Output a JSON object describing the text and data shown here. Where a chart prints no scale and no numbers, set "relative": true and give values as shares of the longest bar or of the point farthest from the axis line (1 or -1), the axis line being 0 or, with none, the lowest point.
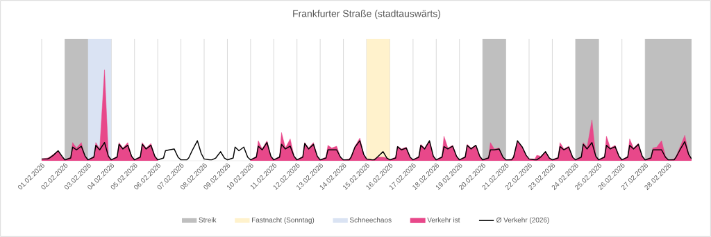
{
  "chart_data": {
    "type": "area",
    "title": "Frankfurter Straße (stadtauswärts)",
    "relative": true,
    "grid": true,
    "legend": "bottom",
    "xlim": [
      "2026-02-01",
      "2026-03-01"
    ],
    "xticks": [
      {
        "value": "2026-02-01",
        "label": "01.02.2026"
      },
      {
        "value": "2026-02-02",
        "label": "02.02.2026"
      },
      {
        "value": "2026-02-03",
        "label": "03.02.2026"
      },
      {
        "value": "2026-02-04",
        "label": "04.02.2026"
      },
      {
        "value": "2026-02-05",
        "label": "05.02.2026"
      },
      {
        "value": "2026-02-06",
        "label": "06.02.2026"
      },
      {
        "value": "2026-02-07",
        "label": "07.02.2026"
      },
      {
        "value": "2026-02-08",
        "label": "08.02.2026"
      },
      {
        "value": "2026-02-09",
        "label": "09.02.2026"
      },
      {
        "value": "2026-02-10",
        "label": "10.02.2026"
      },
      {
        "value": "2026-02-11",
        "label": "11.02.2026"
      },
      {
        "value": "2026-02-12",
        "label": "12.02.2026"
      },
      {
        "value": "2026-02-13",
        "label": "13.02.2026"
      },
      {
        "value": "2026-02-14",
        "label": "14.02.2026"
      },
      {
        "value": "2026-02-15",
        "label": "15.02.2026"
      },
      {
        "value": "2026-02-16",
        "label": "16.02.2026"
      },
      {
        "value": "2026-02-17",
        "label": "17.02.2026"
      },
      {
        "value": "2026-02-18",
        "label": "18.02.2026"
      },
      {
        "value": "2026-02-19",
        "label": "19.02.2026"
      },
      {
        "value": "2026-02-20",
        "label": "20.02.2026"
      },
      {
        "value": "2026-02-21",
        "label": "21.02.2026"
      },
      {
        "value": "2026-02-22",
        "label": "22.02.2026"
      },
      {
        "value": "2026-02-23",
        "label": "23.02.2026"
      },
      {
        "value": "2026-02-24",
        "label": "24.02.2026"
      },
      {
        "value": "2026-02-25",
        "label": "25.02.2026"
      },
      {
        "value": "2026-02-26",
        "label": "26.02.2026"
      },
      {
        "value": "2026-02-27",
        "label": "27.02.2026"
      },
      {
        "value": "2026-02-28",
        "label": "28.02.2026"
      }
    ],
    "bands": [
      {
        "axis": "x",
        "from": "2026-02-02",
        "to": "2026-02-03",
        "label": "Streik",
        "color": "#bfbfbf"
      },
      {
        "axis": "x",
        "from": "2026-02-15",
        "to": "2026-02-16",
        "label": "Fastnacht (Sonntag)",
        "color": "#fff2cc"
      },
      {
        "axis": "x",
        "from": "2026-02-03",
        "to": "2026-02-04",
        "label": "Schneechaos",
        "color": "#dae3f3"
      },
      {
        "axis": "x",
        "from": "2026-02-20",
        "to": "2026-02-21",
        "color": "#bfbfbf"
      },
      {
        "axis": "x",
        "from": "2026-02-24",
        "to": "2026-02-25",
        "color": "#bfbfbf"
      },
      {
        "axis": "x",
        "from": "2026-02-27",
        "to": "2026-03-01",
        "color": "#bfbfbf"
      }
    ],
    "x": [
      "2026-02-01T00:00",
      "2026-02-01T06:00",
      "2026-02-01T08:00",
      "2026-02-01T12:00",
      "2026-02-01T17:00",
      "2026-02-01T21:00",
      "2026-02-02T00:00",
      "2026-02-02T06:00",
      "2026-02-02T08:00",
      "2026-02-02T12:00",
      "2026-02-02T17:00",
      "2026-02-02T21:00",
      "2026-02-03T00:00",
      "2026-02-03T06:00",
      "2026-02-03T08:00",
      "2026-02-03T12:00",
      "2026-02-03T17:00",
      "2026-02-03T21:00",
      "2026-02-04T00:00",
      "2026-02-04T06:00",
      "2026-02-04T08:00",
      "2026-02-04T12:00",
      "2026-02-04T17:00",
      "2026-02-04T21:00",
      "2026-02-05T00:00",
      "2026-02-05T06:00",
      "2026-02-05T08:00",
      "2026-02-05T12:00",
      "2026-02-05T17:00",
      "2026-02-05T21:00",
      "2026-02-06T00:00",
      "2026-02-06T06:00",
      "2026-02-06T08:00",
      "2026-02-06T12:00",
      "2026-02-06T17:00",
      "2026-02-06T21:00",
      "2026-02-07T00:00",
      "2026-02-07T06:00",
      "2026-02-07T08:00",
      "2026-02-07T12:00",
      "2026-02-07T17:00",
      "2026-02-07T21:00",
      "2026-02-08T00:00",
      "2026-02-08T06:00",
      "2026-02-08T08:00",
      "2026-02-08T12:00",
      "2026-02-08T17:00",
      "2026-02-08T21:00",
      "2026-02-09T00:00",
      "2026-02-09T06:00",
      "2026-02-09T08:00",
      "2026-02-09T12:00",
      "2026-02-09T17:00",
      "2026-02-09T21:00",
      "2026-02-10T00:00",
      "2026-02-10T06:00",
      "2026-02-10T08:00",
      "2026-02-10T12:00",
      "2026-02-10T17:00",
      "2026-02-10T21:00",
      "2026-02-11T00:00",
      "2026-02-11T06:00",
      "2026-02-11T08:00",
      "2026-02-11T12:00",
      "2026-02-11T17:00",
      "2026-02-11T21:00",
      "2026-02-12T00:00",
      "2026-02-12T06:00",
      "2026-02-12T08:00",
      "2026-02-12T12:00",
      "2026-02-12T17:00",
      "2026-02-12T21:00",
      "2026-02-13T00:00",
      "2026-02-13T06:00",
      "2026-02-13T08:00",
      "2026-02-13T12:00",
      "2026-02-13T17:00",
      "2026-02-13T21:00",
      "2026-02-14T00:00",
      "2026-02-14T06:00",
      "2026-02-14T08:00",
      "2026-02-14T12:00",
      "2026-02-14T17:00",
      "2026-02-14T21:00",
      "2026-02-15T00:00",
      "2026-02-15T06:00",
      "2026-02-15T08:00",
      "2026-02-15T12:00",
      "2026-02-15T17:00",
      "2026-02-15T21:00",
      "2026-02-16T00:00",
      "2026-02-16T06:00",
      "2026-02-16T08:00",
      "2026-02-16T12:00",
      "2026-02-16T17:00",
      "2026-02-16T21:00",
      "2026-02-17T00:00",
      "2026-02-17T06:00",
      "2026-02-17T08:00",
      "2026-02-17T12:00",
      "2026-02-17T17:00",
      "2026-02-17T21:00",
      "2026-02-18T00:00",
      "2026-02-18T06:00",
      "2026-02-18T08:00",
      "2026-02-18T12:00",
      "2026-02-18T17:00",
      "2026-02-18T21:00",
      "2026-02-19T00:00",
      "2026-02-19T06:00",
      "2026-02-19T08:00",
      "2026-02-19T12:00",
      "2026-02-19T17:00",
      "2026-02-19T21:00",
      "2026-02-20T00:00",
      "2026-02-20T06:00",
      "2026-02-20T08:00",
      "2026-02-20T12:00",
      "2026-02-20T17:00",
      "2026-02-20T21:00",
      "2026-02-21T00:00",
      "2026-02-21T06:00",
      "2026-02-21T08:00",
      "2026-02-21T12:00",
      "2026-02-21T17:00",
      "2026-02-21T21:00",
      "2026-02-22T00:00",
      "2026-02-22T06:00",
      "2026-02-22T08:00",
      "2026-02-22T12:00",
      "2026-02-22T17:00",
      "2026-02-22T21:00",
      "2026-02-23T00:00",
      "2026-02-23T06:00",
      "2026-02-23T08:00",
      "2026-02-23T12:00",
      "2026-02-23T17:00",
      "2026-02-23T21:00",
      "2026-02-24T00:00",
      "2026-02-24T06:00",
      "2026-02-24T08:00",
      "2026-02-24T12:00",
      "2026-02-24T17:00",
      "2026-02-24T21:00",
      "2026-02-25T00:00",
      "2026-02-25T06:00",
      "2026-02-25T08:00",
      "2026-02-25T12:00",
      "2026-02-25T17:00",
      "2026-02-25T21:00",
      "2026-02-26T00:00",
      "2026-02-26T06:00",
      "2026-02-26T08:00",
      "2026-02-26T12:00",
      "2026-02-26T17:00",
      "2026-02-26T21:00",
      "2026-02-27T00:00",
      "2026-02-27T06:00",
      "2026-02-27T08:00",
      "2026-02-27T12:00",
      "2026-02-27T17:00",
      "2026-02-27T21:00",
      "2026-02-28T00:00",
      "2026-02-28T06:00",
      "2026-02-28T08:00",
      "2026-02-28T12:00",
      "2026-02-28T17:00",
      "2026-02-28T21:00",
      "2026-03-01T00:00"
    ],
    "series": [
      {
        "name": "Verkehr ist",
        "color": "#e8488a",
        "values": [
          0.02,
          0.03,
          0.04,
          0.07,
          0.11,
          0.04,
          0.01,
          0.04,
          0.2,
          0.14,
          0.2,
          0.04,
          0.01,
          0.05,
          0.2,
          0.13,
          1.0,
          0.06,
          0.01,
          0.05,
          0.2,
          0.14,
          0.2,
          0.05,
          0.01,
          0.05,
          0.2,
          0.14,
          0.19,
          0.05,
          0.01,
          null,
          null,
          null,
          null,
          null,
          null,
          null,
          null,
          null,
          null,
          null,
          null,
          null,
          null,
          null,
          null,
          null,
          null,
          null,
          null,
          null,
          null,
          null,
          0.01,
          0.05,
          0.22,
          0.13,
          0.22,
          0.05,
          0.01,
          0.05,
          0.31,
          0.14,
          0.24,
          0.05,
          0.01,
          0.05,
          0.2,
          0.14,
          0.2,
          0.05,
          0.01,
          0.04,
          0.17,
          0.14,
          0.16,
          0.04,
          0.01,
          0.02,
          0.05,
          0.16,
          0.25,
          0.07,
          0.02,
          0.01,
          0.02,
          0.04,
          0.04,
          0.03,
          0.01,
          0.04,
          0.16,
          0.13,
          0.15,
          0.04,
          0.01,
          0.05,
          0.18,
          0.14,
          0.22,
          0.05,
          0.01,
          0.05,
          0.27,
          0.14,
          0.17,
          0.05,
          0.01,
          0.05,
          0.18,
          0.14,
          0.17,
          0.05,
          0.01,
          0.04,
          0.2,
          0.13,
          0.14,
          0.04,
          0.01,
          0.02,
          0.05,
          0.22,
          0.15,
          0.06,
          0.02,
          0.02,
          0.06,
          0.05,
          0.1,
          0.03,
          0.01,
          0.04,
          0.2,
          0.13,
          0.16,
          0.04,
          0.01,
          0.05,
          0.2,
          0.15,
          0.45,
          0.05,
          0.01,
          0.05,
          0.27,
          0.14,
          0.17,
          0.05,
          0.01,
          0.05,
          0.24,
          0.14,
          0.19,
          0.05,
          0.01,
          0.04,
          0.14,
          0.15,
          0.22,
          0.05,
          0.01,
          0.02,
          0.05,
          0.15,
          0.28,
          0.08,
          0.02
        ]
      },
      {
        "name": "Ø Verkehr (2026)",
        "type": "line",
        "color": "#000000",
        "values": [
          0.02,
          0.02,
          0.03,
          0.06,
          0.11,
          0.05,
          0.01,
          0.03,
          0.15,
          0.12,
          0.16,
          0.05,
          0.01,
          0.04,
          0.17,
          0.12,
          0.2,
          0.05,
          0.01,
          0.04,
          0.18,
          0.13,
          0.17,
          0.05,
          0.01,
          0.04,
          0.18,
          0.13,
          0.17,
          0.05,
          0.01,
          0.03,
          0.11,
          0.12,
          0.13,
          0.04,
          0.01,
          0.01,
          0.03,
          0.12,
          0.22,
          0.08,
          0.02,
          0.01,
          0.01,
          0.03,
          0.1,
          0.03,
          0.01,
          0.03,
          0.15,
          0.11,
          0.15,
          0.04,
          0.01,
          0.04,
          0.16,
          0.12,
          0.2,
          0.05,
          0.01,
          0.04,
          0.18,
          0.13,
          0.16,
          0.05,
          0.01,
          0.04,
          0.19,
          0.13,
          0.18,
          0.05,
          0.01,
          0.03,
          0.12,
          0.12,
          0.12,
          0.04,
          0.01,
          0.01,
          0.04,
          0.15,
          0.22,
          0.07,
          0.02,
          0.01,
          0.01,
          0.05,
          0.1,
          0.03,
          0.01,
          0.03,
          0.155,
          0.12,
          0.14,
          0.04,
          0.01,
          0.04,
          0.17,
          0.13,
          0.22,
          0.05,
          0.01,
          0.04,
          0.155,
          0.13,
          0.16,
          0.05,
          0.01,
          0.04,
          0.17,
          0.13,
          0.17,
          0.05,
          0.01,
          0.03,
          0.12,
          0.12,
          0.13,
          0.04,
          0.01,
          0.01,
          0.04,
          0.22,
          0.15,
          0.06,
          0.02,
          0.01,
          0.01,
          0.04,
          0.1,
          0.03,
          0.01,
          0.03,
          0.155,
          0.12,
          0.15,
          0.04,
          0.01,
          0.04,
          0.18,
          0.13,
          0.2,
          0.05,
          0.01,
          0.04,
          0.17,
          0.13,
          0.155,
          0.05,
          0.01,
          0.04,
          0.17,
          0.13,
          0.18,
          0.05,
          0.01,
          0.03,
          0.12,
          0.12,
          0.12,
          0.04,
          0.01,
          0.01,
          0.04,
          0.12,
          0.21,
          0.07,
          0.02
        ]
      }
    ]
  }
}
